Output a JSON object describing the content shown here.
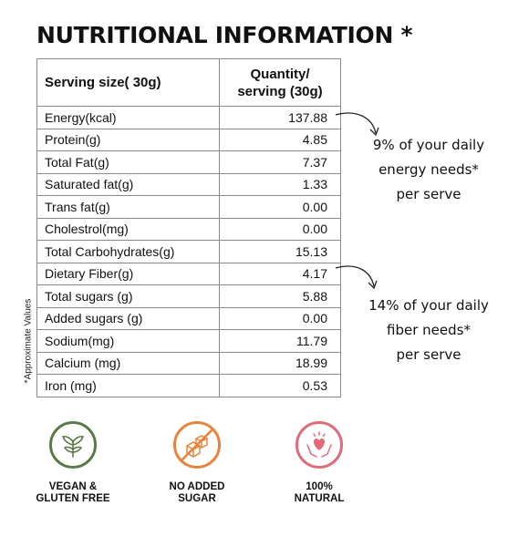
{
  "title": "NUTRITIONAL INFORMATION *",
  "table": {
    "header": {
      "nutrient": "Serving size( 30g)",
      "quantity_line1": "Quantity/",
      "quantity_line2": "serving (30g)"
    },
    "rows": [
      {
        "name": "Energy(kcal)",
        "value": "137.88"
      },
      {
        "name": "Protein(g)",
        "value": "4.85"
      },
      {
        "name": "Total Fat(g)",
        "value": "7.37"
      },
      {
        "name": "Saturated fat(g)",
        "value": "1.33"
      },
      {
        "name": "Trans fat(g)",
        "value": "0.00"
      },
      {
        "name": "Cholestrol(mg)",
        "value": "0.00"
      },
      {
        "name": "Total Carbohydrates(g)",
        "value": "15.13"
      },
      {
        "name": "Dietary  Fiber(g)",
        "value": "4.17"
      },
      {
        "name": "Total sugars (g)",
        "value": "5.88"
      },
      {
        "name": "Added sugars (g)",
        "value": "0.00"
      },
      {
        "name": "Sodium(mg)",
        "value": "11.79"
      },
      {
        "name": "Calcium (mg)",
        "value": "18.99"
      },
      {
        "name": "Iron (mg)",
        "value": "0.53"
      }
    ]
  },
  "side_note": "*Approximate Values",
  "energy_note": {
    "line1": "9% of your daily",
    "line2": "energy needs*",
    "line3": "per serve"
  },
  "fiber_note": {
    "line1": "14% of your daily",
    "line2": "fiber needs*",
    "line3": "per serve"
  },
  "badges": [
    {
      "icon": "vegan-plant-icon",
      "line1": "VEGAN &",
      "line2": "GLUTEN FREE",
      "color": "#5a7a4a"
    },
    {
      "icon": "no-sugar-cubes-icon",
      "line1": "NO ADDED",
      "line2": "SUGAR",
      "color": "#e8833a"
    },
    {
      "icon": "heart-in-hands-icon",
      "line1": "100%",
      "line2": "NATURAL",
      "color": "#e06a78"
    }
  ]
}
